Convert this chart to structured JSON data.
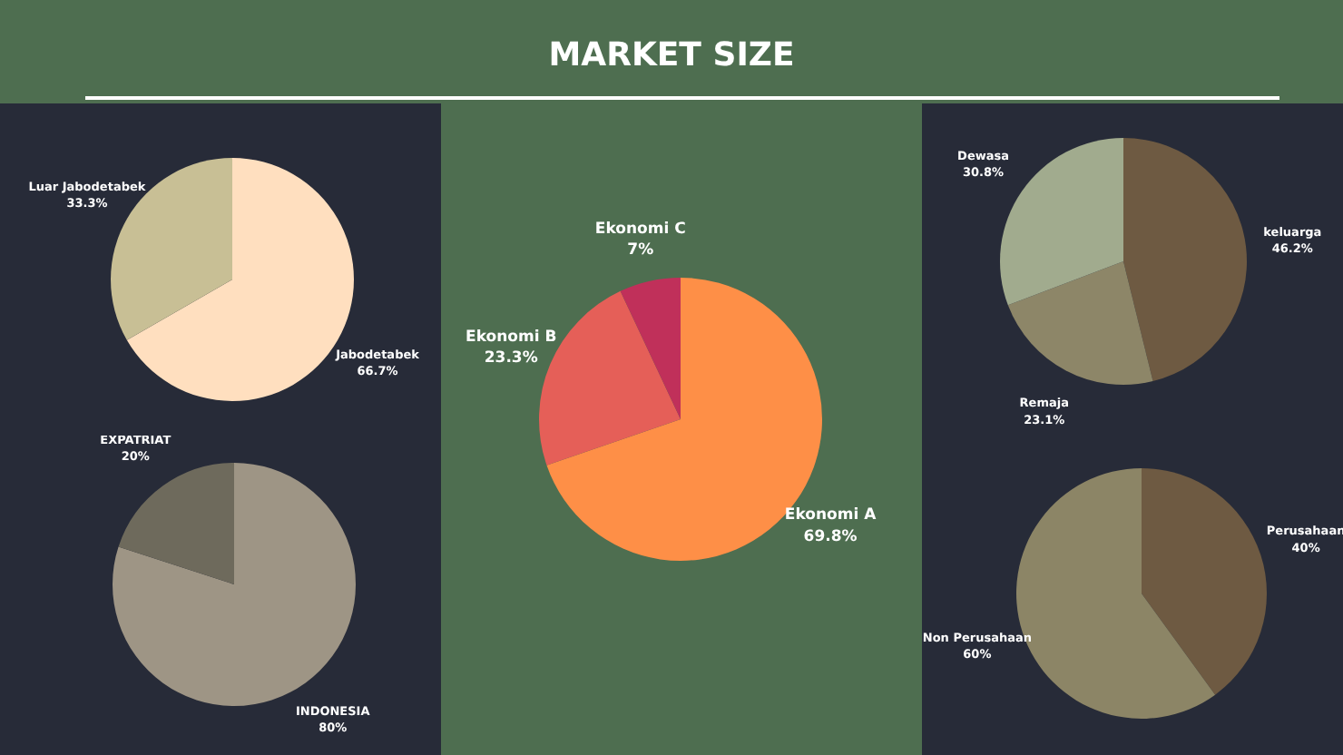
{
  "chart_data": [
    {
      "type": "other",
      "title": "MARKET SIZE"
    },
    {
      "type": "pie",
      "categories": [
        "Jabodetabek",
        "Luar Jabodetabek"
      ],
      "values": [
        66.7,
        33.3
      ],
      "colors": [
        "#ffdfbf",
        "#c8bf95"
      ],
      "value_labels": [
        "66.7%",
        "33.3%"
      ]
    },
    {
      "type": "pie",
      "categories": [
        "INDONESIA",
        "EXPATRIAT"
      ],
      "values": [
        80,
        20
      ],
      "colors": [
        "#9e9585",
        "#6e6a5c"
      ],
      "value_labels": [
        "80%",
        "20%"
      ]
    },
    {
      "type": "pie",
      "categories": [
        "Ekonomi A",
        "Ekonomi B",
        "Ekonomi C"
      ],
      "values": [
        69.8,
        23.3,
        7
      ],
      "colors": [
        "#fe8f47",
        "#e55f58",
        "#c0305a"
      ],
      "value_labels": [
        "69.8%",
        "23.3%",
        "7%"
      ]
    },
    {
      "type": "pie",
      "categories": [
        "keluarga",
        "Remaja",
        "Dewasa"
      ],
      "values": [
        46.2,
        23.1,
        30.8
      ],
      "colors": [
        "#6e5a42",
        "#8d8668",
        "#a1ab8e"
      ],
      "value_labels": [
        "46.2%",
        "23.1%",
        "30.8%"
      ]
    },
    {
      "type": "pie",
      "categories": [
        "Perusahaan",
        "Non Perusahaan"
      ],
      "values": [
        40,
        60
      ],
      "colors": [
        "#6e5a42",
        "#8c8566"
      ],
      "value_labels": [
        "40%",
        "60%"
      ]
    }
  ]
}
